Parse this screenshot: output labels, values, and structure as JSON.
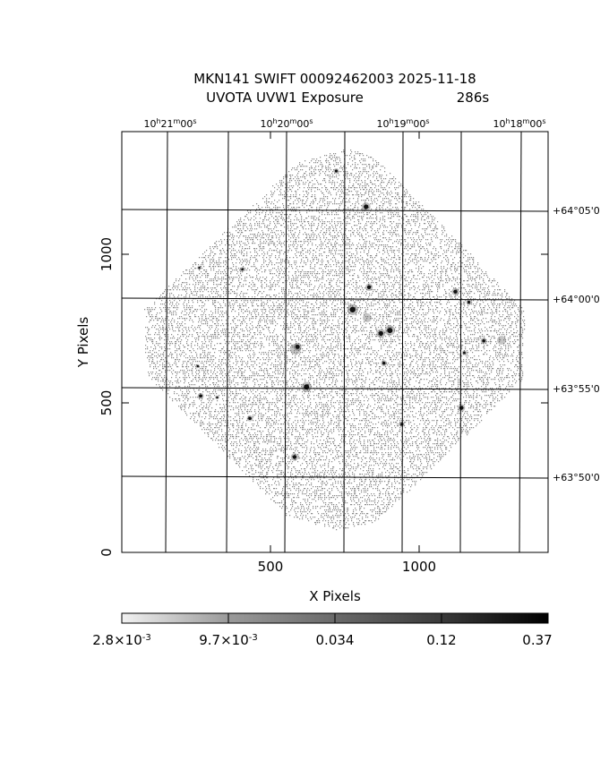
{
  "title": {
    "line1": "MKN141  SWIFT  00092462003  2025-11-18",
    "line2_label": "UVOTA  UVW1  Exposure",
    "line2_value": "286s"
  },
  "axes": {
    "xlabel": "X Pixels",
    "ylabel": "Y Pixels",
    "x_ticks": [
      "500",
      "1000"
    ],
    "y_ticks": [
      "0",
      "500",
      "1000"
    ]
  },
  "wcs": {
    "ra_labels": [
      {
        "h": "10",
        "m": "21",
        "s": "00"
      },
      {
        "h": "10",
        "m": "20",
        "s": "00"
      },
      {
        "h": "10",
        "m": "19",
        "s": "00"
      },
      {
        "h": "10",
        "m": "18",
        "s": "00"
      }
    ],
    "dec_labels": [
      "+64°05'0",
      "+64°00'0",
      "+63°55'0",
      "+63°50'0"
    ]
  },
  "colorbar": {
    "labels": [
      {
        "mant": "2.8",
        "exp": "-3"
      },
      {
        "mant": "9.7",
        "exp": "-3"
      },
      {
        "text": "0.034"
      },
      {
        "text": "0.12"
      },
      {
        "text": "0.37"
      }
    ],
    "colors": {
      "low": "#f2f2f2",
      "high": "#000000"
    }
  },
  "image": {
    "noise_color": "#8c8c8c",
    "sources": [
      {
        "x": 820,
        "y": 1160,
        "r": 2.6
      },
      {
        "x": 720,
        "y": 1280,
        "r": 1.6
      },
      {
        "x": 405,
        "y": 950,
        "r": 1.4
      },
      {
        "x": 830,
        "y": 890,
        "r": 2.2
      },
      {
        "x": 775,
        "y": 815,
        "r": 3.2
      },
      {
        "x": 870,
        "y": 735,
        "r": 2.6
      },
      {
        "x": 900,
        "y": 745,
        "r": 3.0
      },
      {
        "x": 880,
        "y": 635,
        "r": 1.8
      },
      {
        "x": 620,
        "y": 555,
        "r": 3.0
      },
      {
        "x": 590,
        "y": 690,
        "r": 2.4
      },
      {
        "x": 1120,
        "y": 875,
        "r": 2.2
      },
      {
        "x": 1165,
        "y": 840,
        "r": 1.6
      },
      {
        "x": 1215,
        "y": 710,
        "r": 1.8
      },
      {
        "x": 1150,
        "y": 670,
        "r": 1.4
      },
      {
        "x": 1140,
        "y": 485,
        "r": 2.2
      },
      {
        "x": 430,
        "y": 450,
        "r": 1.8
      },
      {
        "x": 265,
        "y": 525,
        "r": 1.8
      },
      {
        "x": 580,
        "y": 320,
        "r": 2.2
      },
      {
        "x": 940,
        "y": 430,
        "r": 1.6
      },
      {
        "x": 320,
        "y": 520,
        "r": 1.2
      },
      {
        "x": 255,
        "y": 625,
        "r": 1.2
      },
      {
        "x": 260,
        "y": 955,
        "r": 1.2
      }
    ]
  }
}
